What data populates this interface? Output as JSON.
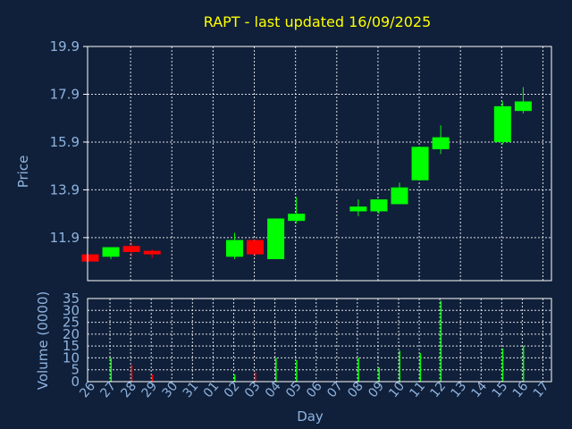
{
  "title": "RAPT - last updated 16/09/2025",
  "chart_data": [
    {
      "type": "candlestick",
      "title": "RAPT - last updated 16/09/2025",
      "ylabel": "Price",
      "ylim": [
        10.1,
        19.9
      ],
      "yticks": [
        "11.9",
        "13.9",
        "15.9",
        "17.9",
        "19.9"
      ],
      "grid": true,
      "candles": [
        {
          "day": "26",
          "open": 11.2,
          "close": 10.9,
          "high": 11.2,
          "low": 10.9
        },
        {
          "day": "27",
          "open": 11.1,
          "close": 11.5,
          "high": 11.5,
          "low": 11.0
        },
        {
          "day": "28",
          "open": 11.55,
          "close": 11.3,
          "high": 11.7,
          "low": 11.1
        },
        {
          "day": "29",
          "open": 11.35,
          "close": 11.2,
          "high": 11.4,
          "low": 11.05
        },
        {
          "day": "02",
          "open": 11.1,
          "close": 11.8,
          "high": 12.1,
          "low": 11.0
        },
        {
          "day": "03",
          "open": 11.8,
          "close": 11.2,
          "high": 11.8,
          "low": 11.1
        },
        {
          "day": "04",
          "open": 11.0,
          "close": 12.7,
          "high": 12.7,
          "low": 11.0
        },
        {
          "day": "05",
          "open": 12.6,
          "close": 12.9,
          "high": 13.6,
          "low": 12.5
        },
        {
          "day": "08",
          "open": 13.0,
          "close": 13.2,
          "high": 13.5,
          "low": 12.8
        },
        {
          "day": "09",
          "open": 13.0,
          "close": 13.5,
          "high": 13.5,
          "low": 12.9
        },
        {
          "day": "10",
          "open": 13.3,
          "close": 14.0,
          "high": 14.2,
          "low": 13.3
        },
        {
          "day": "11",
          "open": 14.3,
          "close": 15.7,
          "high": 15.7,
          "low": 14.3
        },
        {
          "day": "12",
          "open": 15.6,
          "close": 16.1,
          "high": 16.6,
          "low": 15.4
        },
        {
          "day": "15",
          "open": 15.9,
          "close": 17.4,
          "high": 17.6,
          "low": 15.8
        },
        {
          "day": "16",
          "open": 17.2,
          "close": 17.6,
          "high": 18.2,
          "low": 17.1
        }
      ]
    },
    {
      "type": "bar",
      "ylabel": "Volume (0000)",
      "xlabel": "Day",
      "ylim": [
        0,
        35
      ],
      "yticks": [
        "0",
        "5",
        "10",
        "15",
        "20",
        "25",
        "30",
        "35"
      ],
      "grid": true,
      "categories": [
        "26",
        "27",
        "28",
        "29",
        "30",
        "31",
        "01",
        "02",
        "03",
        "04",
        "05",
        "06",
        "07",
        "08",
        "09",
        "10",
        "11",
        "12",
        "13",
        "14",
        "15",
        "16",
        "17"
      ],
      "bars": [
        {
          "day": "27",
          "value": 10,
          "direction": "up"
        },
        {
          "day": "28",
          "value": 7,
          "direction": "down"
        },
        {
          "day": "29",
          "value": 3,
          "direction": "down"
        },
        {
          "day": "02",
          "value": 3,
          "direction": "up"
        },
        {
          "day": "03",
          "value": 4,
          "direction": "down"
        },
        {
          "day": "04",
          "value": 10,
          "direction": "up"
        },
        {
          "day": "05",
          "value": 9,
          "direction": "up"
        },
        {
          "day": "08",
          "value": 10,
          "direction": "up"
        },
        {
          "day": "09",
          "value": 6,
          "direction": "up"
        },
        {
          "day": "10",
          "value": 13,
          "direction": "up"
        },
        {
          "day": "11",
          "value": 12,
          "direction": "up"
        },
        {
          "day": "12",
          "value": 34,
          "direction": "up"
        },
        {
          "day": "15",
          "value": 14,
          "direction": "up"
        },
        {
          "day": "16",
          "value": 15,
          "direction": "up"
        }
      ]
    }
  ],
  "colors": {
    "up": "#00ff00",
    "down": "#ff0000",
    "background": "#10203a",
    "title": "#ffff00",
    "axis_text": "#8fb3df"
  }
}
